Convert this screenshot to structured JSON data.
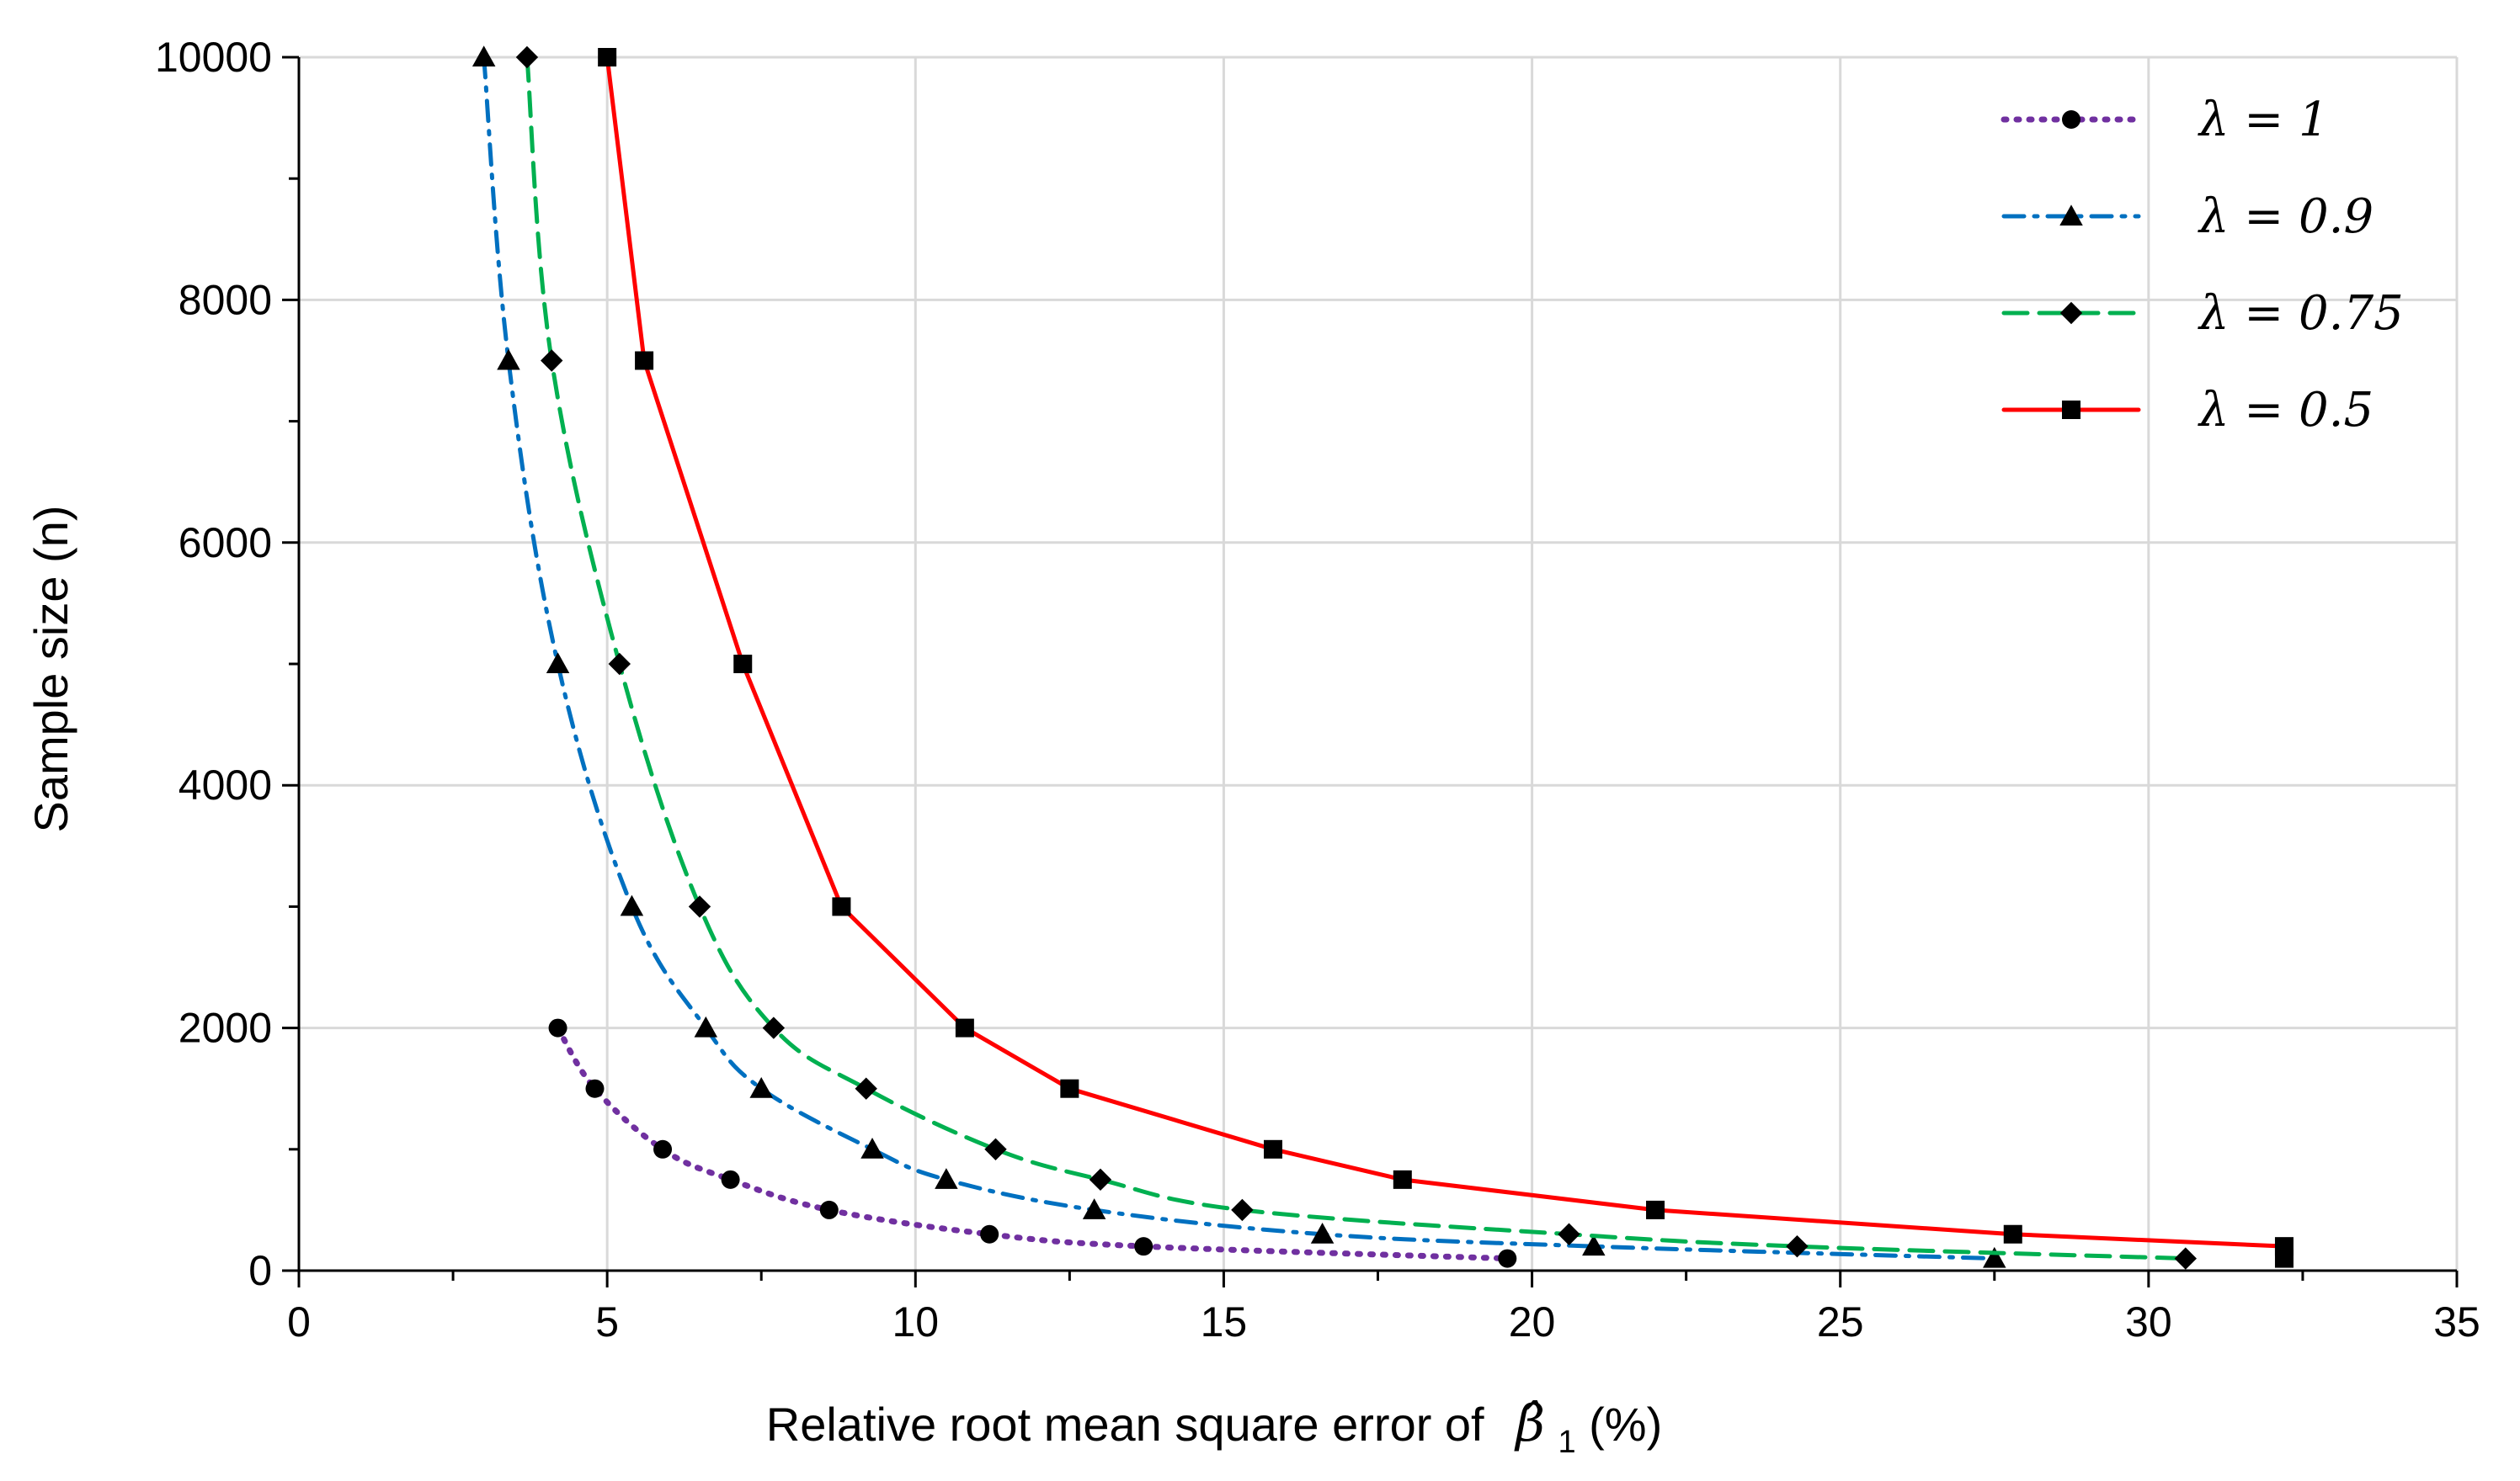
{
  "chart_data": {
    "type": "line",
    "title": "",
    "xlabel": "Relative root mean square error of",
    "xlabel_symbol": "β̂",
    "xlabel_subscript": "1",
    "xlabel_suffix": "(%)",
    "ylabel": "Sample size (n)",
    "xlim": [
      0,
      35
    ],
    "ylim": [
      0,
      10000
    ],
    "xticks": [
      "0",
      "5",
      "10",
      "15",
      "20",
      "25",
      "30",
      "35"
    ],
    "yticks": [
      "0",
      "2000",
      "4000",
      "6000",
      "8000",
      "10000"
    ],
    "grid": true,
    "legend_position": "top-right",
    "series": [
      {
        "name": "λ = 1",
        "color": "#7030A0",
        "marker": "circle",
        "line_style": "dotted",
        "x": [
          4.2,
          4.8,
          5.9,
          7.0,
          8.6,
          11.2,
          13.7,
          19.6
        ],
        "y": [
          2000,
          1500,
          1000,
          750,
          500,
          300,
          200,
          100
        ]
      },
      {
        "name": "λ = 0.9",
        "color": "#0070C0",
        "marker": "triangle",
        "line_style": "dashdot",
        "x": [
          3.0,
          3.4,
          4.2,
          5.4,
          6.6,
          7.5,
          9.3,
          10.5,
          12.9,
          16.6,
          21.0,
          27.5
        ],
        "y": [
          10000,
          7500,
          5000,
          3000,
          2000,
          1500,
          1000,
          750,
          500,
          300,
          200,
          100
        ]
      },
      {
        "name": "λ = 0.75",
        "color": "#00B050",
        "marker": "diamond",
        "line_style": "dashed",
        "x": [
          3.7,
          4.1,
          5.2,
          6.5,
          7.7,
          9.2,
          11.3,
          13.0,
          15.3,
          20.6,
          24.3,
          30.6
        ],
        "y": [
          10000,
          7500,
          5000,
          3000,
          2000,
          1500,
          1000,
          750,
          500,
          300,
          200,
          100
        ]
      },
      {
        "name": "λ = 0.5",
        "color": "#FF0000",
        "marker": "square",
        "line_style": "solid",
        "x": [
          5.0,
          5.6,
          7.2,
          8.8,
          10.8,
          12.5,
          15.8,
          17.9,
          22.0,
          27.8,
          32.2,
          32.2
        ],
        "y": [
          10000,
          7500,
          5000,
          3000,
          2000,
          1500,
          1000,
          750,
          500,
          300,
          200,
          100
        ]
      }
    ]
  }
}
